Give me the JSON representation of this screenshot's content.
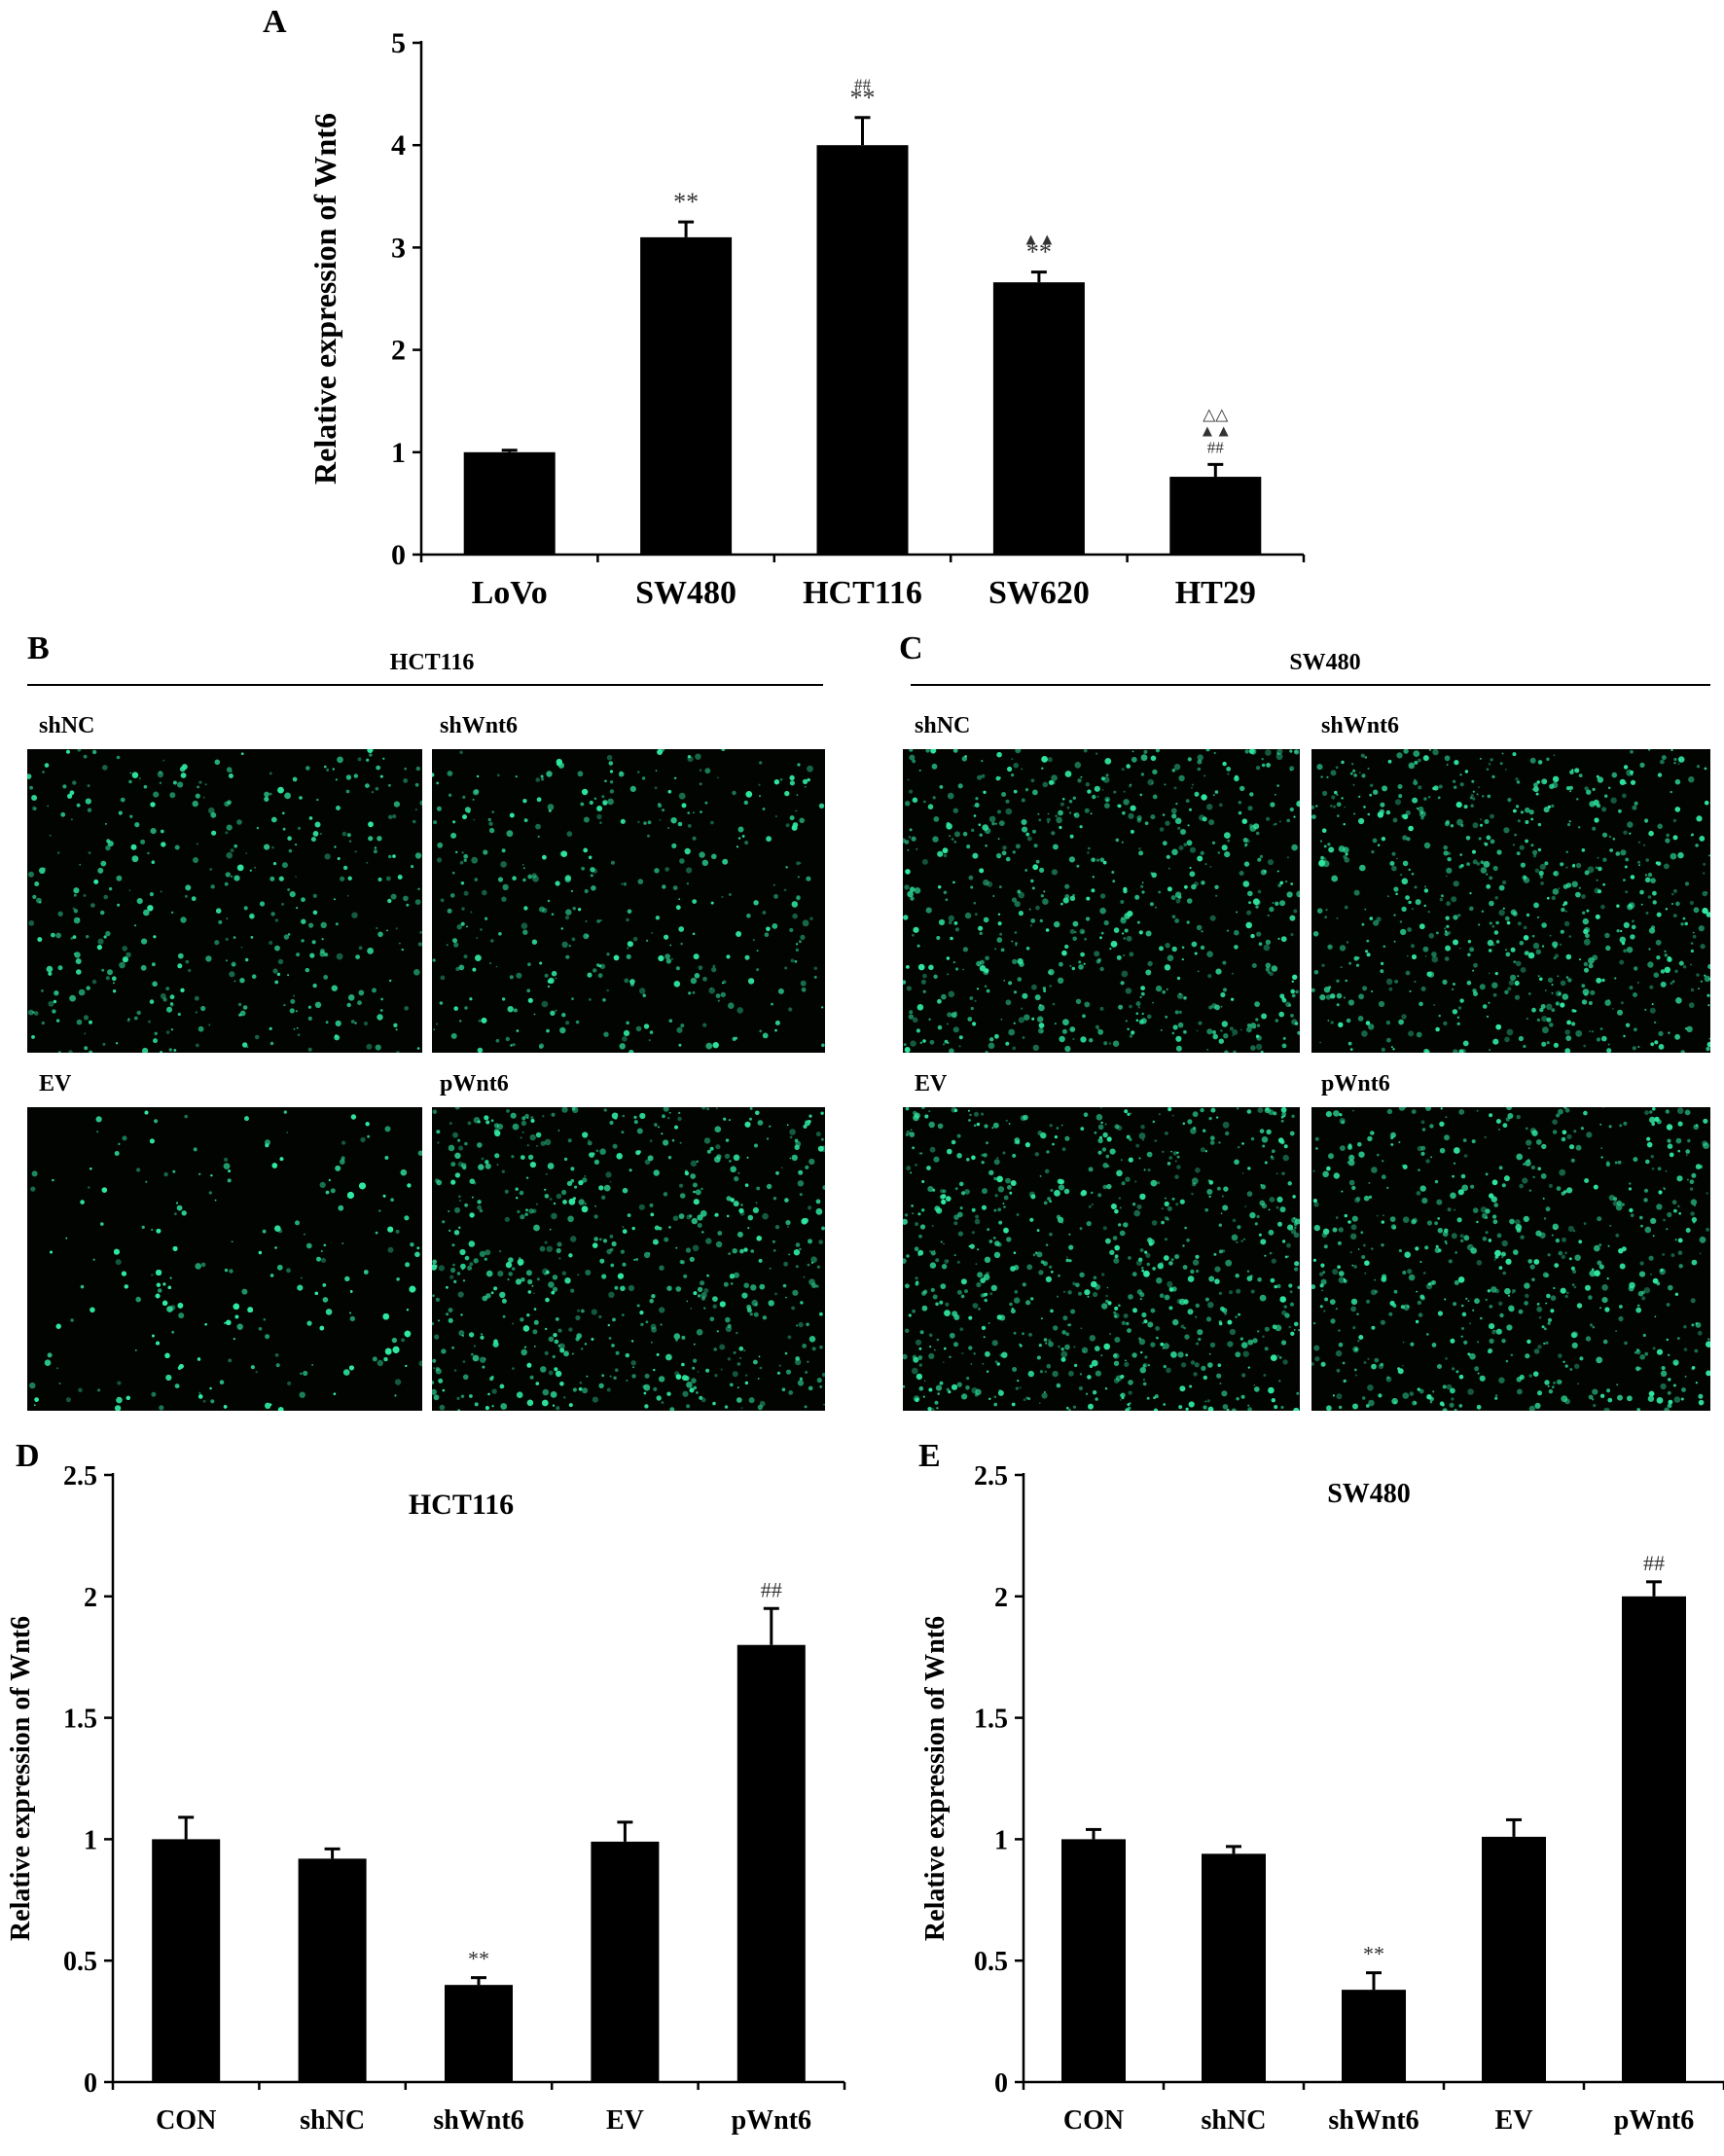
{
  "panels": {
    "A": {
      "letter": "A"
    },
    "B": {
      "letter": "B",
      "title": "HCT116",
      "labels": [
        "shNC",
        "shWnt6",
        "EV",
        "pWnt6"
      ]
    },
    "C": {
      "letter": "C",
      "title": "SW480",
      "labels": [
        "shNC",
        "shWnt6",
        "EV",
        "pWnt6"
      ]
    },
    "D": {
      "letter": "D"
    },
    "E": {
      "letter": "E"
    }
  },
  "chart_data": [
    {
      "panel": "A",
      "type": "bar",
      "title": "",
      "xlabel": "",
      "ylabel": "Relative expression of Wnt6",
      "categories": [
        "LoVo",
        "SW480",
        "HCT116",
        "SW620",
        "HT29"
      ],
      "values": [
        1.0,
        3.1,
        4.0,
        2.66,
        0.76
      ],
      "errors": [
        0.02,
        0.15,
        0.27,
        0.1,
        0.12
      ],
      "annotations": [
        [],
        [
          "**"
        ],
        [
          "**",
          "##"
        ],
        [
          "**",
          "▲▲"
        ],
        [
          "##",
          "▲▲",
          "△△"
        ]
      ],
      "ylim": [
        0,
        5
      ],
      "yticks": [
        0,
        1,
        2,
        3,
        4,
        5
      ],
      "bar_color": "#000000",
      "grid": false
    },
    {
      "panel": "D",
      "type": "bar",
      "title": "HCT116",
      "xlabel": "",
      "ylabel": "Relative expression of Wnt6",
      "categories": [
        "CON",
        "shNC",
        "shWnt6",
        "EV",
        "pWnt6"
      ],
      "values": [
        1.0,
        0.92,
        0.4,
        0.99,
        1.8
      ],
      "errors": [
        0.09,
        0.04,
        0.03,
        0.08,
        0.15
      ],
      "annotations": [
        [],
        [],
        [
          "**"
        ],
        [],
        [
          "##"
        ]
      ],
      "ylim": [
        0,
        2.5
      ],
      "yticks": [
        "0",
        "0.5",
        "1",
        "1.5",
        "2",
        "2.5"
      ],
      "bar_color": "#000000",
      "grid": false
    },
    {
      "panel": "E",
      "type": "bar",
      "title": "SW480",
      "xlabel": "",
      "ylabel": "Relative expression of Wnt6",
      "categories": [
        "CON",
        "shNC",
        "shWnt6",
        "EV",
        "pWnt6"
      ],
      "values": [
        1.0,
        0.94,
        0.38,
        1.01,
        2.0
      ],
      "errors": [
        0.04,
        0.03,
        0.07,
        0.07,
        0.06
      ],
      "annotations": [
        [],
        [],
        [
          "**"
        ],
        [],
        [
          "##"
        ]
      ],
      "ylim": [
        0,
        2.5
      ],
      "yticks": [
        "0",
        "0.5",
        "1",
        "1.5",
        "2",
        "2.5"
      ],
      "bar_color": "#000000",
      "grid": false
    }
  ],
  "micrograph_color": "#30e8a0"
}
